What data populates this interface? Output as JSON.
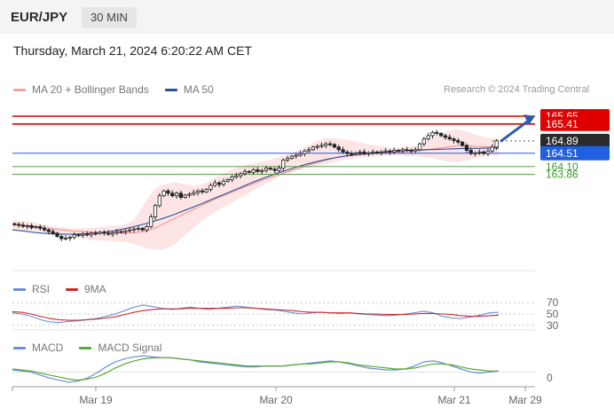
{
  "header": {
    "pair": "EUR/JPY",
    "interval": "30 MIN"
  },
  "datetime": "Thursday, March 21, 2024 6:20:22 AM CET",
  "credit": "Research © 2024 Trading Central",
  "legends": {
    "main": [
      {
        "label": "MA 20 + Bollinger Bands",
        "color": "#f4a0a0"
      },
      {
        "label": "MA 50",
        "color": "#2c4f9c"
      }
    ],
    "rsi": [
      {
        "label": "RSI",
        "color": "#6b8fd8"
      },
      {
        "label": "9MA",
        "color": "#cc2b2b"
      }
    ],
    "macd": [
      {
        "label": "MACD",
        "color": "#6b8fd8"
      },
      {
        "label": "MACD Signal",
        "color": "#5aa832"
      }
    ]
  },
  "chart_data": [
    {
      "type": "candlestick",
      "ylim": [
        160.9,
        165.95
      ],
      "x_ticks": [
        "Mar 19",
        "Mar 20",
        "Mar 21",
        "Mar 29"
      ],
      "levels": [
        {
          "value": 165.65,
          "label": "165.65",
          "color": "#e00000",
          "kind": "resistance"
        },
        {
          "value": 165.41,
          "label": "165.41",
          "color": "#e00000",
          "kind": "resistance"
        },
        {
          "value": 164.89,
          "label": "164.89",
          "color": "#2a2a2a",
          "kind": "last-price"
        },
        {
          "value": 164.51,
          "label": "164.51",
          "color": "#1f5fe0",
          "kind": "pivot"
        },
        {
          "value": 164.1,
          "label": "164.10",
          "color": "#3a9a2a",
          "kind": "support"
        },
        {
          "value": 163.86,
          "label": "163.86",
          "color": "#3a9a2a",
          "kind": "support"
        }
      ],
      "target_arrow": {
        "from": 164.89,
        "to": 165.65,
        "color": "#2c5fa8"
      },
      "closes": [
        162.32,
        162.3,
        162.26,
        162.28,
        162.22,
        162.25,
        162.2,
        162.15,
        162.1,
        162.05,
        161.95,
        161.88,
        161.9,
        161.92,
        162.0,
        161.98,
        162.02,
        162.0,
        162.05,
        162.04,
        162.08,
        162.05,
        162.02,
        162.06,
        162.1,
        162.08,
        162.12,
        162.15,
        162.18,
        162.2,
        162.15,
        162.25,
        162.55,
        162.9,
        163.2,
        163.35,
        163.28,
        163.2,
        163.28,
        163.15,
        163.22,
        163.25,
        163.3,
        163.35,
        163.32,
        163.4,
        163.52,
        163.6,
        163.55,
        163.65,
        163.7,
        163.78,
        163.82,
        163.88,
        163.95,
        163.92,
        164.0,
        163.95,
        163.98,
        164.05,
        164.02,
        163.98,
        164.05,
        164.3,
        164.35,
        164.42,
        164.45,
        164.5,
        164.58,
        164.62,
        164.7,
        164.72,
        164.75,
        164.8,
        164.78,
        164.7,
        164.62,
        164.55,
        164.5,
        164.48,
        164.52,
        164.55,
        164.5,
        164.52,
        164.55,
        164.52,
        164.55,
        164.58,
        164.55,
        164.6,
        164.58,
        164.62,
        164.6,
        164.58,
        164.62,
        164.8,
        164.95,
        165.05,
        165.15,
        165.12,
        165.05,
        165.0,
        164.95,
        164.9,
        164.85,
        164.75,
        164.6,
        164.5,
        164.52,
        164.55,
        164.5,
        164.58,
        164.7,
        164.89
      ],
      "ma20": [
        162.3,
        162.28,
        162.25,
        162.22,
        162.18,
        162.15,
        162.12,
        162.1,
        162.08,
        162.06,
        162.05,
        162.05,
        162.06,
        162.1,
        162.2,
        162.35,
        162.5,
        162.65,
        162.8,
        162.95,
        163.1,
        163.22,
        163.35,
        163.48,
        163.6,
        163.72,
        163.82,
        163.92,
        164.02,
        164.12,
        164.22,
        164.3,
        164.38,
        164.42,
        164.46,
        164.48,
        164.5,
        164.52,
        164.54,
        164.56,
        164.58,
        164.62,
        164.66,
        164.7,
        164.74,
        164.74,
        164.72,
        164.7,
        164.7
      ],
      "ma50": [
        162.15,
        162.12,
        162.08,
        162.05,
        162.03,
        162.02,
        162.02,
        162.03,
        162.05,
        162.08,
        162.12,
        162.18,
        162.25,
        162.33,
        162.42,
        162.52,
        162.63,
        162.75,
        162.87,
        163.0,
        163.13,
        163.26,
        163.39,
        163.52,
        163.65,
        163.77,
        163.88,
        163.98,
        164.08,
        164.17,
        164.25,
        164.32,
        164.38,
        164.43,
        164.47,
        164.5,
        164.53,
        164.56,
        164.58,
        164.6,
        164.61,
        164.62,
        164.63,
        164.64,
        164.65,
        164.66,
        164.66,
        164.67,
        164.67
      ],
      "bb_upper": [
        162.45,
        162.42,
        162.38,
        162.32,
        162.26,
        162.22,
        162.2,
        162.2,
        162.22,
        162.25,
        162.28,
        162.3,
        162.45,
        162.95,
        163.4,
        163.55,
        163.62,
        163.55,
        163.5,
        163.58,
        163.75,
        163.92,
        164.05,
        164.15,
        164.22,
        164.28,
        164.36,
        164.46,
        164.58,
        164.72,
        164.88,
        164.98,
        164.96,
        164.92,
        164.86,
        164.8,
        164.74,
        164.7,
        164.68,
        164.7,
        164.75,
        164.9,
        165.05,
        165.2,
        165.25,
        165.15,
        165.05,
        164.98,
        164.96
      ],
      "bb_lower": [
        162.15,
        162.14,
        162.12,
        162.1,
        162.05,
        161.98,
        161.92,
        161.88,
        161.84,
        161.82,
        161.8,
        161.78,
        161.72,
        161.6,
        161.55,
        161.55,
        161.7,
        161.98,
        162.25,
        162.5,
        162.7,
        162.88,
        163.05,
        163.22,
        163.4,
        163.58,
        163.75,
        163.88,
        163.98,
        164.05,
        164.1,
        164.18,
        164.26,
        164.32,
        164.36,
        164.4,
        164.42,
        164.44,
        164.44,
        164.43,
        164.42,
        164.38,
        164.32,
        164.25,
        164.22,
        164.3,
        164.38,
        164.42,
        164.44
      ]
    },
    {
      "type": "line",
      "name": "RSI panel",
      "ylim": [
        25,
        75
      ],
      "y_ticks": [
        70,
        50,
        30
      ],
      "series": [
        {
          "name": "RSI",
          "color": "#6b8fd8",
          "values": [
            52,
            50,
            46,
            40,
            36,
            35,
            37,
            38,
            40,
            42,
            46,
            50,
            56,
            62,
            66,
            63,
            60,
            58,
            60,
            62,
            60,
            58,
            60,
            62,
            64,
            62,
            60,
            58,
            57,
            55,
            52,
            50,
            52,
            53,
            52,
            51,
            52,
            50,
            49,
            48,
            47,
            48,
            50,
            52,
            55,
            52,
            46,
            43,
            42,
            45,
            48,
            52,
            53
          ]
        },
        {
          "name": "9MA",
          "color": "#cc2b2b",
          "values": [
            54,
            53,
            50,
            46,
            42,
            40,
            39,
            39,
            40,
            41,
            43,
            45,
            49,
            53,
            56,
            58,
            59,
            59,
            59,
            60,
            60,
            60,
            60,
            60,
            61,
            61,
            60,
            59,
            58,
            57,
            56,
            54,
            53,
            53,
            52,
            52,
            52,
            51,
            50,
            50,
            49,
            49,
            49,
            50,
            51,
            51,
            50,
            49,
            47,
            46,
            46,
            47,
            48
          ]
        }
      ]
    },
    {
      "type": "line",
      "name": "MACD panel",
      "y_ticks": [
        0
      ],
      "series": [
        {
          "name": "MACD",
          "color": "#6b8fd8",
          "values": [
            0.02,
            0.01,
            0.0,
            -0.03,
            -0.06,
            -0.08,
            -0.1,
            -0.09,
            -0.06,
            -0.01,
            0.05,
            0.1,
            0.13,
            0.15,
            0.16,
            0.15,
            0.14,
            0.14,
            0.13,
            0.12,
            0.1,
            0.09,
            0.08,
            0.07,
            0.06,
            0.05,
            0.05,
            0.06,
            0.06,
            0.06,
            0.07,
            0.08,
            0.09,
            0.1,
            0.11,
            0.1,
            0.08,
            0.06,
            0.04,
            0.03,
            0.02,
            0.02,
            0.03,
            0.06,
            0.1,
            0.11,
            0.09,
            0.06,
            0.03,
            0.0,
            -0.01,
            0.0,
            0.01
          ]
        },
        {
          "name": "MACD Signal",
          "color": "#5aa832",
          "values": [
            0.03,
            0.02,
            0.01,
            -0.01,
            -0.03,
            -0.05,
            -0.07,
            -0.08,
            -0.07,
            -0.05,
            -0.01,
            0.04,
            0.08,
            0.11,
            0.13,
            0.14,
            0.14,
            0.14,
            0.13,
            0.12,
            0.11,
            0.1,
            0.09,
            0.08,
            0.07,
            0.06,
            0.06,
            0.06,
            0.06,
            0.06,
            0.07,
            0.08,
            0.08,
            0.09,
            0.1,
            0.1,
            0.09,
            0.07,
            0.06,
            0.05,
            0.04,
            0.03,
            0.03,
            0.04,
            0.06,
            0.08,
            0.08,
            0.07,
            0.05,
            0.03,
            0.02,
            0.01,
            0.01
          ]
        }
      ]
    }
  ]
}
